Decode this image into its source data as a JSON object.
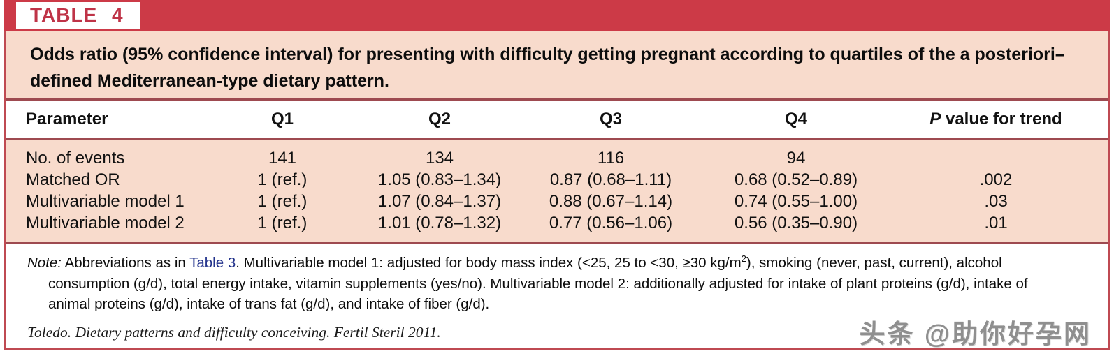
{
  "table_label": "TABLE 4",
  "title": {
    "line1": "Odds ratio (95% confidence interval) for presenting with difficulty getting pregnant according to quartiles of the a posteriori–",
    "line2": "defined Mediterranean-type dietary pattern."
  },
  "columns": {
    "parameter": "Parameter",
    "q1": "Q1",
    "q2": "Q2",
    "q3": "Q3",
    "q4": "Q4",
    "p_italic": "P",
    "p_rest": " value for trend"
  },
  "rows": [
    {
      "param": "No. of events",
      "q1": "141",
      "q2": "134",
      "q3": "116",
      "q4": "94",
      "p": ""
    },
    {
      "param": "Matched OR",
      "q1": "1 (ref.)",
      "q2": "1.05 (0.83–1.34)",
      "q3": "0.87 (0.68–1.11)",
      "q4": "0.68 (0.52–0.89)",
      "p": ".002"
    },
    {
      "param": "Multivariable model 1",
      "q1": "1 (ref.)",
      "q2": "1.07 (0.84–1.37)",
      "q3": "0.88 (0.67–1.14)",
      "q4": "0.74 (0.55–1.00)",
      "p": ".03"
    },
    {
      "param": "Multivariable model 2",
      "q1": "1 (ref.)",
      "q2": "1.01 (0.78–1.32)",
      "q3": "0.77 (0.56–1.06)",
      "q4": "0.56 (0.35–0.90)",
      "p": ".01"
    }
  ],
  "note": {
    "prefix": "Note:",
    "line1_a": " Abbreviations as in ",
    "line1_link": "Table 3",
    "line1_b": ". Multivariable model 1: adjusted for body mass index (<25, 25 to <30, ≥30 kg/m",
    "line1_sup": "2",
    "line1_c": "), smoking (never, past, current), alcohol",
    "line2": "consumption (g/d), total energy intake, vitamin supplements (yes/no). Multivariable model 2: additionally adjusted for intake of plant proteins (g/d), intake of",
    "line3": "animal proteins (g/d), intake of trans fat (g/d), and intake of fiber (g/d)."
  },
  "citation": "Toledo. Dietary patterns and difficulty conceiving. Fertil Steril 2011.",
  "watermark": "头条 @助你好孕网",
  "colors": {
    "accent_red": "#cc3a47",
    "label_red": "#bf3347",
    "panel_pink": "#f8dbcc",
    "separator_red": "#9e4a50",
    "border_red": "#bf4a52",
    "link_blue": "#23338c",
    "watermark_gray": "#8f8f8f"
  }
}
